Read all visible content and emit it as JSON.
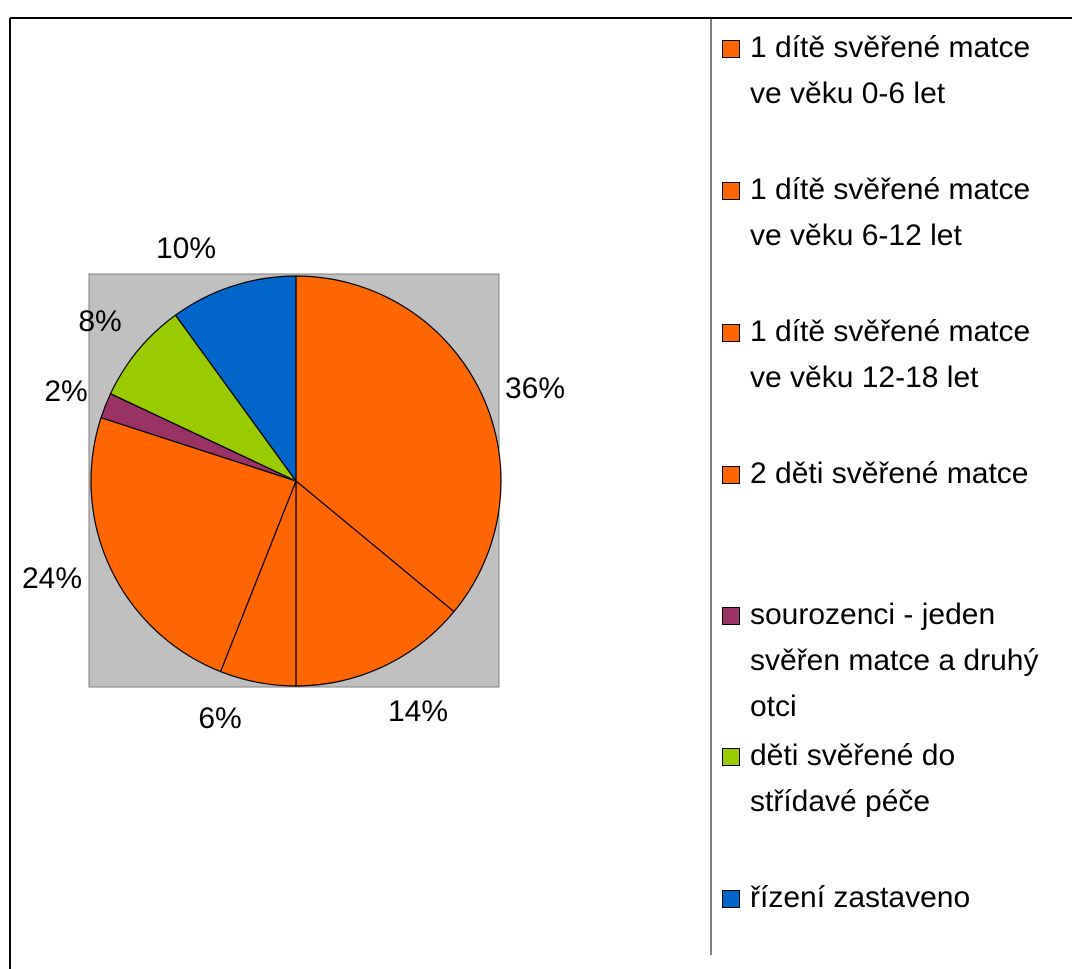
{
  "chart_data": {
    "type": "pie",
    "categories": [
      "1 dítě svěřené matce ve věku 0-6 let",
      "1 dítě svěřené matce ve věku 6-12 let",
      "1 dítě svěřené matce ve věku 12-18 let",
      "2 děti svěřené matce",
      "sourozenci - jeden svěřen matce a druhý otci",
      "děti svěřené do střídavé péče",
      "řízení zastaveno"
    ],
    "values": [
      36,
      14,
      6,
      24,
      2,
      8,
      10
    ],
    "value_labels": [
      "36%",
      "14%",
      "6%",
      "24%",
      "2%",
      "8%",
      "10%"
    ],
    "colors": [
      "#ff6600",
      "#ff6600",
      "#ff6600",
      "#ff6600",
      "#993366",
      "#99cc00",
      "#0066cc"
    ],
    "legend": "right"
  }
}
